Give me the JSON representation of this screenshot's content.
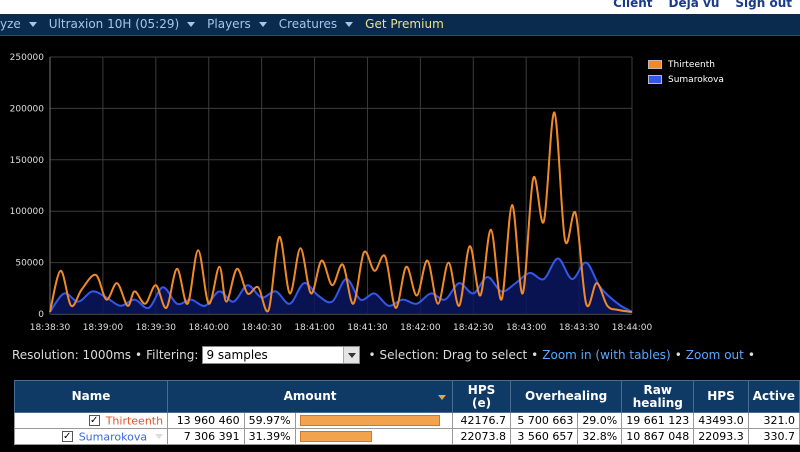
{
  "header": {
    "links": [
      "Client",
      "Deja vu",
      "Sign out"
    ]
  },
  "nav": {
    "items": [
      {
        "label": "yze",
        "has_caret": true
      },
      {
        "label": "Ultraxion 10H (05:29)",
        "has_caret": true
      },
      {
        "label": "Players",
        "has_caret": true
      },
      {
        "label": "Creatures",
        "has_caret": true
      },
      {
        "label": "Get Premium",
        "has_caret": false
      }
    ]
  },
  "colors": {
    "series_orange": "#f08a28",
    "series_blue": "#3358e8",
    "nav_bg": "#0a2a4e",
    "table_header": "#0f3a66",
    "bar": "#f3a24e"
  },
  "chart_data": {
    "type": "line",
    "ylim": [
      0,
      250000
    ],
    "yticks": [
      "0",
      "50000",
      "100000",
      "150000",
      "200000",
      "250000"
    ],
    "x_ticks": [
      "18:38:30",
      "18:39:00",
      "18:39:30",
      "18:40:00",
      "18:40:30",
      "18:41:00",
      "18:41:30",
      "18:42:00",
      "18:42:30",
      "18:43:00",
      "18:43:30",
      "18:44:00"
    ],
    "x_start_seconds": 0,
    "x_end_seconds": 330,
    "grid": true,
    "legend_position": "top-right",
    "series": [
      {
        "name": "Thirteenth",
        "color": "#f08a28",
        "x": [
          0,
          6,
          12,
          18,
          26,
          32,
          38,
          44,
          48,
          54,
          60,
          66,
          72,
          78,
          84,
          90,
          96,
          100,
          106,
          112,
          118,
          124,
          130,
          136,
          142,
          148,
          154,
          160,
          166,
          172,
          178,
          184,
          190,
          196,
          202,
          208,
          214,
          220,
          226,
          232,
          238,
          244,
          250,
          256,
          262,
          268,
          274,
          280,
          286,
          292,
          298,
          304,
          310,
          316,
          322,
          330
        ],
        "y": [
          2000,
          42000,
          8000,
          24000,
          38000,
          14000,
          30000,
          8000,
          22000,
          10000,
          28000,
          6000,
          44000,
          10000,
          62000,
          10000,
          46000,
          12000,
          44000,
          20000,
          26000,
          4000,
          75000,
          20000,
          64000,
          20000,
          52000,
          28000,
          48000,
          10000,
          60000,
          42000,
          56000,
          6000,
          46000,
          18000,
          52000,
          10000,
          50000,
          8000,
          66000,
          18000,
          82000,
          14000,
          106000,
          20000,
          132000,
          90000,
          196000,
          72000,
          98000,
          10000,
          30000,
          8000,
          4000,
          2000
        ]
      },
      {
        "name": "Sumarokova",
        "color": "#3358e8",
        "x": [
          0,
          8,
          16,
          24,
          32,
          40,
          48,
          56,
          64,
          72,
          80,
          88,
          96,
          104,
          112,
          120,
          128,
          136,
          144,
          152,
          160,
          168,
          176,
          184,
          192,
          200,
          208,
          216,
          224,
          232,
          240,
          248,
          256,
          264,
          272,
          280,
          288,
          296,
          304,
          312,
          322,
          330
        ],
        "y": [
          2000,
          20000,
          12000,
          22000,
          16000,
          8000,
          14000,
          6000,
          26000,
          10000,
          14000,
          8000,
          22000,
          12000,
          28000,
          16000,
          22000,
          10000,
          30000,
          18000,
          12000,
          34000,
          14000,
          20000,
          8000,
          14000,
          10000,
          20000,
          14000,
          30000,
          20000,
          36000,
          22000,
          30000,
          40000,
          34000,
          54000,
          34000,
          50000,
          26000,
          10000,
          2000
        ]
      }
    ]
  },
  "controls": {
    "resolution_label": "Resolution: 1000ms",
    "filtering_label": "Filtering:",
    "filtering_value": "9 samples",
    "selection_label": "Selection: Drag to select",
    "zoom_in": "Zoom in (with tables)",
    "zoom_out": "Zoom out"
  },
  "table": {
    "headers": {
      "name": "Name",
      "amount": "Amount",
      "hps_e_line1": "HPS",
      "hps_e_line2": "(e)",
      "overhealing": "Overhealing",
      "raw_line1": "Raw",
      "raw_line2": "healing",
      "hps": "HPS",
      "active": "Active"
    },
    "rows": [
      {
        "name": "Thirteenth",
        "name_color": "#e0582a",
        "has_caret": false,
        "amount": "13 960 460",
        "pct": "59.97%",
        "bar_fraction": 1.0,
        "hps_e": "42176.7",
        "overhealing": "5 700 663",
        "over_pct": "29.0%",
        "raw": "19 661 123",
        "hps": "43493.0",
        "active": "321.0"
      },
      {
        "name": "Sumarokova",
        "name_color": "#3a68e8",
        "has_caret": true,
        "amount": "7 306 391",
        "pct": "31.39%",
        "bar_fraction": 0.52,
        "hps_e": "22073.8",
        "overhealing": "3 560 657",
        "over_pct": "32.8%",
        "raw": "10 867 048",
        "hps": "22093.3",
        "active": "330.7"
      }
    ]
  }
}
